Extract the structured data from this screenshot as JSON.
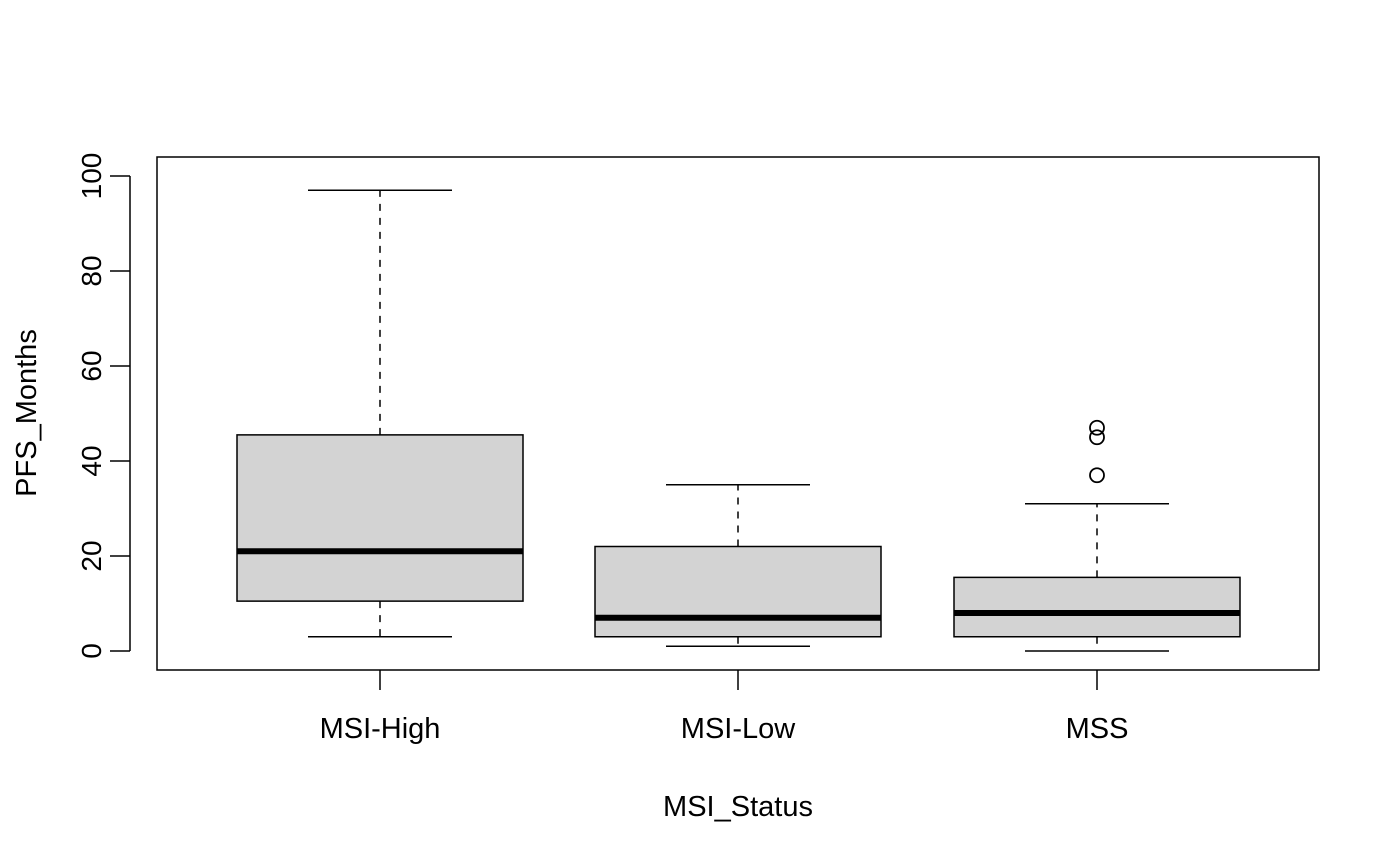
{
  "chart_data": {
    "type": "box",
    "xlabel": "MSI_Status",
    "ylabel": "PFS_Months",
    "categories": [
      "MSI-High",
      "MSI-Low",
      "MSS"
    ],
    "yticks": [
      0,
      20,
      40,
      60,
      80,
      100
    ],
    "grid": false,
    "box_fill": "#d3d3d3",
    "boxes": [
      {
        "category": "MSI-High",
        "whisker_low": 3,
        "q1": 10.5,
        "median": 21,
        "q3": 45.5,
        "whisker_high": 97,
        "outliers": []
      },
      {
        "category": "MSI-Low",
        "whisker_low": 1,
        "q1": 3,
        "median": 7,
        "q3": 22,
        "whisker_high": 35,
        "outliers": []
      },
      {
        "category": "MSS",
        "whisker_low": 0,
        "q1": 3,
        "median": 8,
        "q3": 15.5,
        "whisker_high": 31,
        "outliers": [
          37,
          45,
          47
        ]
      }
    ]
  }
}
